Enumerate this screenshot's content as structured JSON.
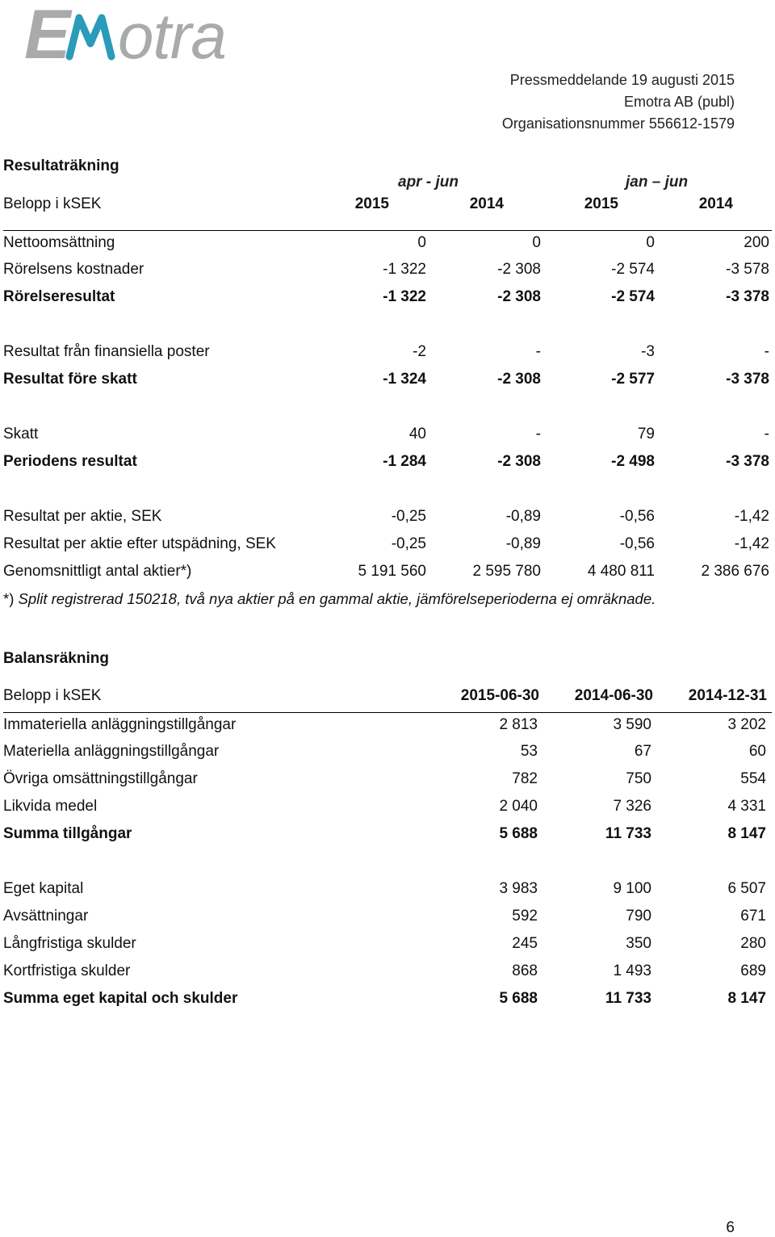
{
  "logo": {
    "text": "Emotra"
  },
  "header": {
    "line1": "Pressmeddelande 19 augusti 2015",
    "line2": "Emotra AB (publ)",
    "line3": "Organisationsnummer 556612-1579"
  },
  "income": {
    "title": "Resultaträkning",
    "unit_label": "Belopp i kSEK",
    "period1": "apr - jun",
    "period2": "jan – jun",
    "years": [
      "2015",
      "2014",
      "2015",
      "2014"
    ],
    "rows": [
      {
        "label": "Nettoomsättning",
        "values": [
          "0",
          "0",
          "0",
          "200"
        ]
      },
      {
        "label": "Rörelsens kostnader",
        "values": [
          "-1 322",
          "-2 308",
          "-2 574",
          "-3 578"
        ]
      },
      {
        "label": "Rörelseresultat",
        "values": [
          "-1 322",
          "-2 308",
          "-2 574",
          "-3 378"
        ]
      },
      {
        "label": "Resultat från finansiella poster",
        "values": [
          "-2",
          "-",
          "-3",
          "-"
        ]
      },
      {
        "label": "Resultat före skatt",
        "values": [
          "-1 324",
          "-2 308",
          "-2 577",
          "-3 378"
        ]
      },
      {
        "label": "Skatt",
        "values": [
          "40",
          "-",
          "79",
          "-"
        ]
      },
      {
        "label": "Periodens resultat",
        "values": [
          "-1 284",
          "-2 308",
          "-2 498",
          "-3 378"
        ]
      },
      {
        "label": "Resultat per aktie, SEK",
        "values": [
          "-0,25",
          "-0,89",
          "-0,56",
          "-1,42"
        ]
      },
      {
        "label": "Resultat per aktie efter utspädning, SEK",
        "values": [
          "-0,25",
          "-0,89",
          "-0,56",
          "-1,42"
        ]
      },
      {
        "label": "Genomsnittligt antal aktier*)",
        "values": [
          "5 191 560",
          "2 595 780",
          "4 480 811",
          "2 386 676"
        ]
      }
    ],
    "footnote_mark": "*)",
    "footnote": "Split registrerad 150218, två nya aktier på en gammal aktie, jämförelseperioderna ej omräknade."
  },
  "balance": {
    "title": "Balansräkning",
    "unit_label": "Belopp i kSEK",
    "dates": [
      "2015-06-30",
      "2014-06-30",
      "2014-12-31"
    ],
    "rows": [
      {
        "label": "Immateriella anläggningstillgångar",
        "values": [
          "2 813",
          "3 590",
          "3 202"
        ]
      },
      {
        "label": "Materiella anläggningstillgångar",
        "values": [
          "53",
          "67",
          "60"
        ]
      },
      {
        "label": "Övriga omsättningstillgångar",
        "values": [
          "782",
          "750",
          "554"
        ]
      },
      {
        "label": "Likvida medel",
        "values": [
          "2 040",
          "7 326",
          "4 331"
        ]
      },
      {
        "label": "Summa tillgångar",
        "values": [
          "5 688",
          "11 733",
          "8 147"
        ]
      },
      {
        "label": "Eget kapital",
        "values": [
          "3 983",
          "9 100",
          "6 507"
        ]
      },
      {
        "label": "Avsättningar",
        "values": [
          "592",
          "790",
          "671"
        ]
      },
      {
        "label": "Långfristiga skulder",
        "values": [
          "245",
          "350",
          "280"
        ]
      },
      {
        "label": "Kortfristiga skulder",
        "values": [
          "868",
          "1 493",
          "689"
        ]
      },
      {
        "label": "Summa eget kapital och skulder",
        "values": [
          "5 688",
          "11 733",
          "8 147"
        ]
      }
    ]
  },
  "page_number": "6"
}
